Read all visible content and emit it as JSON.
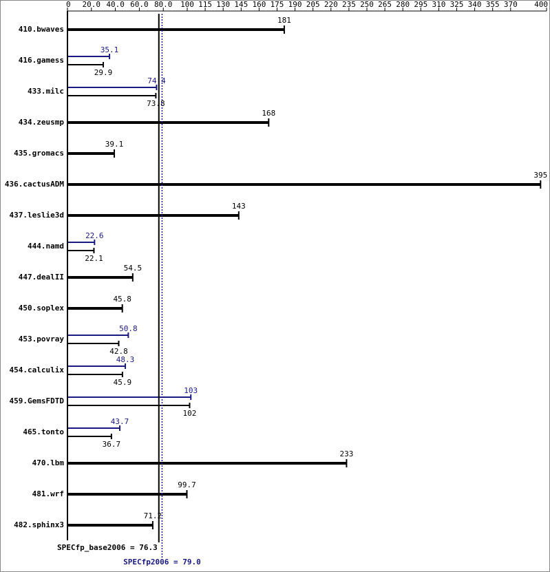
{
  "chart_data": {
    "type": "bar",
    "orientation": "horizontal",
    "categories": [
      "410.bwaves",
      "416.gamess",
      "433.milc",
      "434.zeusmp",
      "435.gromacs",
      "436.cactusADM",
      "437.leslie3d",
      "444.namd",
      "447.dealII",
      "450.soplex",
      "453.povray",
      "454.calculix",
      "459.GemsFDTD",
      "465.tonto",
      "470.lbm",
      "481.wrf",
      "482.sphinx3"
    ],
    "series": [
      {
        "color": "#000000",
        "values": [
          181,
          29.9,
          73.8,
          168,
          39.1,
          395,
          143,
          22.1,
          54.5,
          45.8,
          42.8,
          45.9,
          102,
          36.7,
          233,
          99.7,
          71.2
        ]
      },
      {
        "color": "#191980",
        "values": [
          null,
          35.1,
          74.4,
          null,
          null,
          null,
          null,
          22.6,
          null,
          null,
          50.8,
          48.3,
          103,
          43.7,
          null,
          null,
          null
        ]
      }
    ],
    "xlim": [
      0,
      400
    ],
    "xticks": [
      0,
      {
        "value": 20,
        "label": "20.0"
      },
      {
        "value": 40,
        "label": "40.0"
      },
      {
        "value": 60,
        "label": "60.0"
      },
      {
        "value": 80,
        "label": "80.0"
      },
      100,
      115,
      130,
      145,
      160,
      175,
      190,
      205,
      220,
      235,
      250,
      265,
      280,
      295,
      310,
      325,
      340,
      355,
      370,
      400
    ],
    "reference_lines": [
      {
        "value": 76.3,
        "label": "SPECfp_base2006 = 76.3",
        "color": "#000000",
        "style": "solid"
      },
      {
        "value": 79.0,
        "label": "SPECfp2006 = 79.0",
        "color": "#191980",
        "style": "dotted"
      }
    ]
  }
}
